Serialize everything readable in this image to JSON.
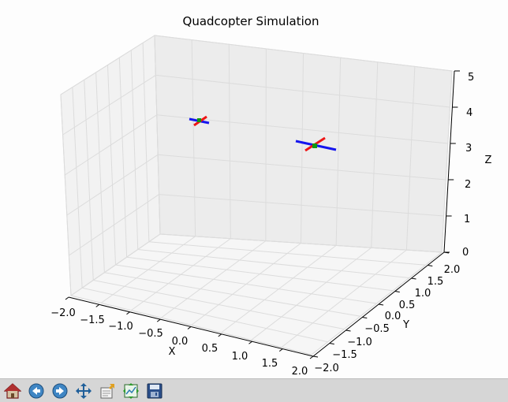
{
  "chart_data": {
    "type": "3d-scatter",
    "title": "Quadcopter Simulation",
    "xlabel": "X",
    "ylabel": "Y",
    "zlabel": "Z",
    "xlim": [
      -2.0,
      2.0
    ],
    "ylim": [
      -2.0,
      2.0
    ],
    "zlim": [
      0,
      5
    ],
    "x_ticks": [
      "−2.0",
      "−1.5",
      "−1.0",
      "−0.5",
      "0.0",
      "0.5",
      "1.0",
      "1.5",
      "2.0"
    ],
    "y_ticks": [
      "−2.0",
      "−1.5",
      "−1.0",
      "−0.5",
      "0.0",
      "0.5",
      "1.0",
      "1.5",
      "2.0"
    ],
    "z_ticks": [
      "0",
      "1",
      "2",
      "3",
      "4",
      "5"
    ],
    "grid": true,
    "arm_colors": [
      "#1515ee",
      "#ee1515"
    ],
    "center_color": "#119911"
  },
  "toolbar": {
    "buttons": [
      {
        "name": "home-icon",
        "tooltip": "Home"
      },
      {
        "name": "back-icon",
        "tooltip": "Back"
      },
      {
        "name": "forward-icon",
        "tooltip": "Forward"
      },
      {
        "name": "pan-icon",
        "tooltip": "Pan"
      },
      {
        "name": "zoom-icon",
        "tooltip": "Zoom"
      },
      {
        "name": "subplots-icon",
        "tooltip": "Configure subplots"
      },
      {
        "name": "save-icon",
        "tooltip": "Save"
      }
    ]
  }
}
